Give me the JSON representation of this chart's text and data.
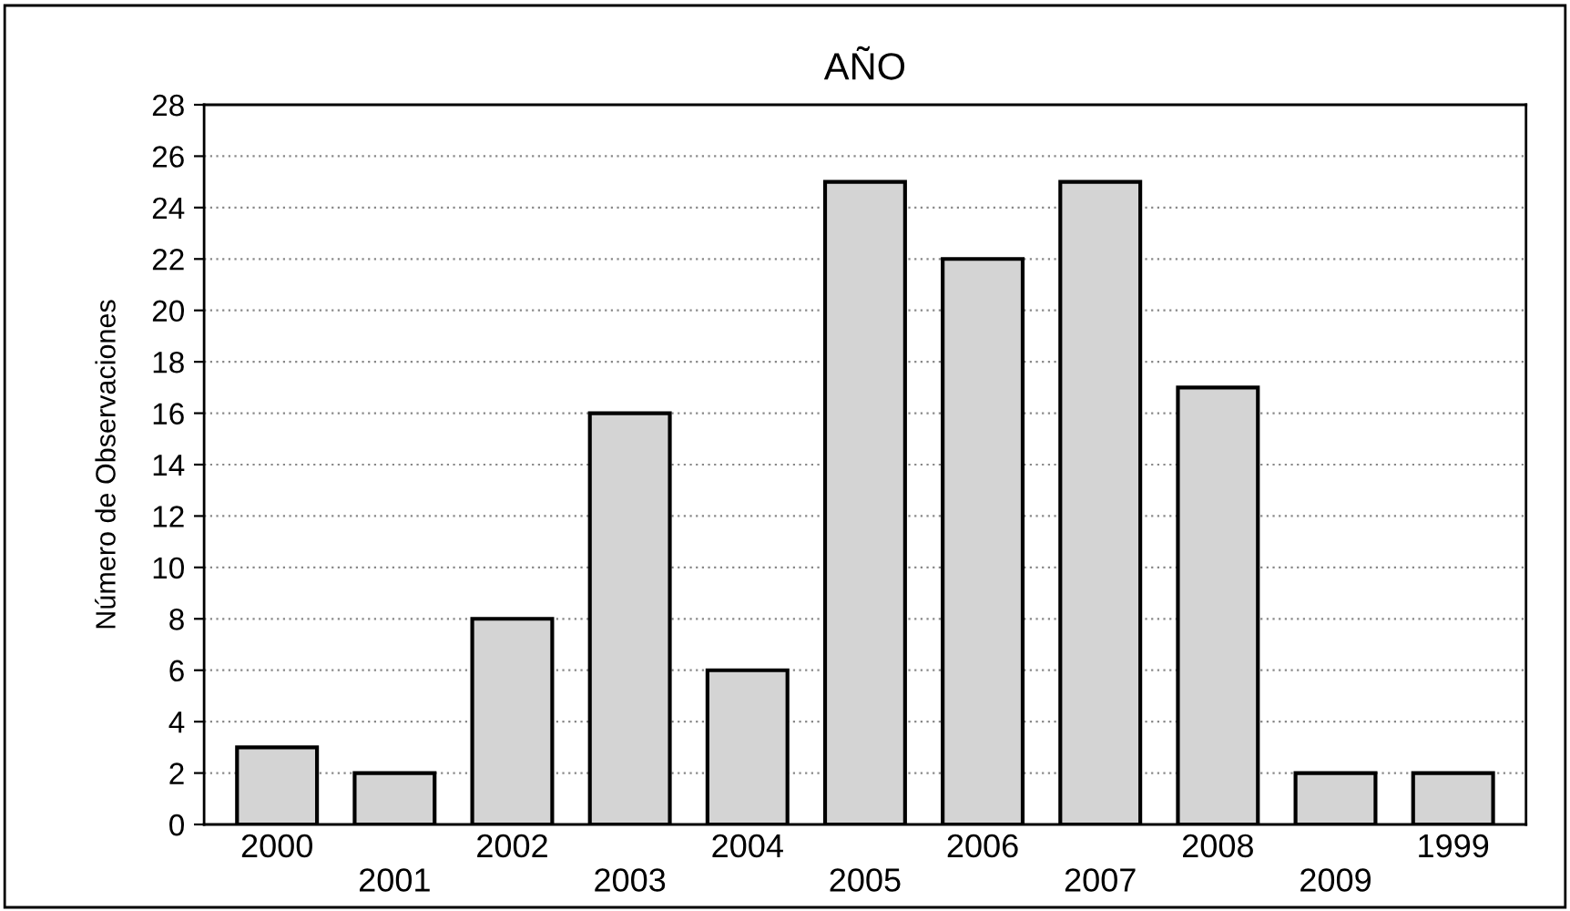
{
  "chart_data": {
    "type": "bar",
    "title": "AÑO",
    "ylabel": "Número de Observaciones",
    "categories": [
      "2000",
      "2001",
      "2002",
      "2003",
      "2004",
      "2005",
      "2006",
      "2007",
      "2008",
      "2009",
      "1999"
    ],
    "values": [
      3,
      2,
      8,
      16,
      6,
      25,
      22,
      25,
      17,
      2,
      2
    ],
    "color": "#d4d4d4",
    "ylim": [
      0,
      28
    ],
    "yticks": [
      0,
      2,
      4,
      6,
      8,
      10,
      12,
      14,
      16,
      18,
      20,
      22,
      24,
      26,
      28
    ],
    "grid": "y",
    "legend": false
  }
}
